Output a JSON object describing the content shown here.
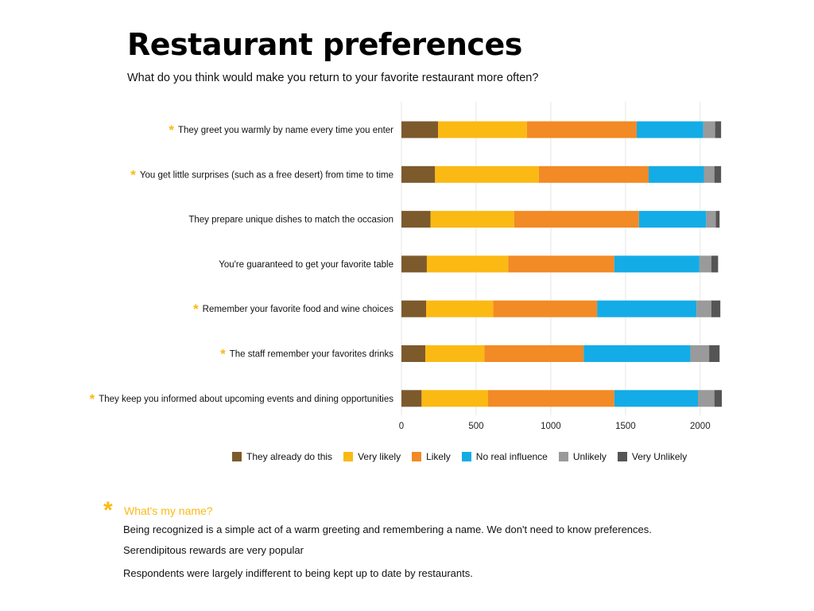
{
  "header": {
    "title": "Restaurant preferences",
    "subtitle": "What do you think would make you return to your favorite restaurant more often?"
  },
  "chart_data": {
    "type": "bar",
    "orientation": "horizontal",
    "stacked": true,
    "categories": [
      "They greet you warmly by name every time you enter",
      "You get little surprises (such as a free desert) from time to time",
      "They prepare unique dishes to match the occasion",
      "You're guaranteed to get your favorite table",
      "Remember your favorite food and wine choices",
      "The staff remember your favorites drinks",
      "They keep you informed about upcoming events and dining opportunities"
    ],
    "starred": [
      true,
      true,
      false,
      false,
      true,
      true,
      true
    ],
    "series": [
      {
        "name": "They already do this",
        "color": "#7d5a2c",
        "values": [
          245,
          225,
          195,
          170,
          165,
          160,
          135
        ]
      },
      {
        "name": "Very likely",
        "color": "#fbb914",
        "values": [
          595,
          695,
          560,
          545,
          450,
          395,
          445
        ]
      },
      {
        "name": "Likely",
        "color": "#f28a25",
        "values": [
          735,
          735,
          835,
          710,
          695,
          665,
          845
        ]
      },
      {
        "name": "No real influence",
        "color": "#14ace6",
        "values": [
          445,
          370,
          450,
          570,
          665,
          715,
          560
        ]
      },
      {
        "name": "Unlikely",
        "color": "#9a9a9a",
        "values": [
          80,
          70,
          65,
          80,
          100,
          125,
          110
        ]
      },
      {
        "name": "Very Unlikely",
        "color": "#555555",
        "values": [
          40,
          45,
          25,
          45,
          60,
          70,
          50
        ]
      }
    ],
    "xlim": [
      0,
      2150
    ],
    "xticks": [
      0,
      500,
      1000,
      1500,
      2000
    ],
    "grid": true,
    "legend_position": "bottom",
    "title": "Restaurant preferences",
    "xlabel": "",
    "ylabel": ""
  },
  "star_glyph": "*",
  "notes": {
    "heading": "What's my name?",
    "lines": [
      "Being recognized is a simple act of a warm greeting and remembering a name. We don't need to know preferences.",
      "Serendipitous rewards are very popular",
      "Respondents were largely indifferent to being kept up to date by restaurants."
    ]
  },
  "colors": {
    "accent": "#fbb914",
    "gridline": "#e6e6e6"
  }
}
